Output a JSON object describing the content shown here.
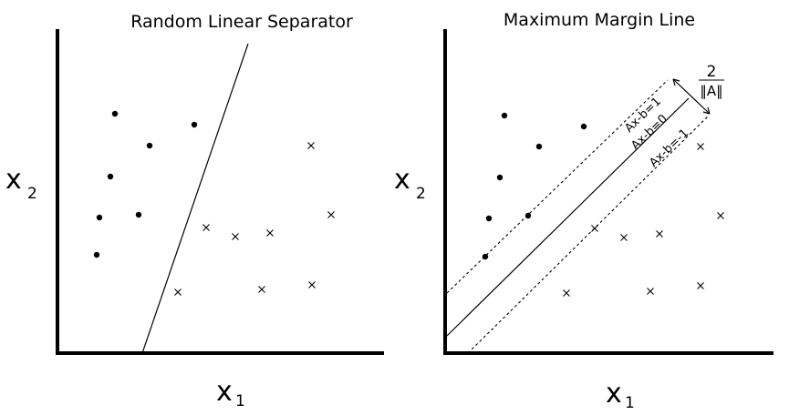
{
  "left_panel": {
    "title": "Random Linear Separator",
    "xlabel": "x",
    "xlabel_sub": "1",
    "ylabel": "x",
    "ylabel_sub": "2"
  },
  "right_panel": {
    "title": "Maximum Margin Line",
    "xlabel": "x",
    "xlabel_sub": "1",
    "ylabel": "x",
    "ylabel_sub": "2",
    "line_labels": {
      "upper": "Ax-b=1",
      "center": "Ax-b=0",
      "lower": "Ax-b=-1"
    },
    "margin_numerator": "2",
    "margin_denominator": "‖A‖"
  },
  "colors": {
    "ink": "#000000",
    "background": "#ffffff"
  }
}
